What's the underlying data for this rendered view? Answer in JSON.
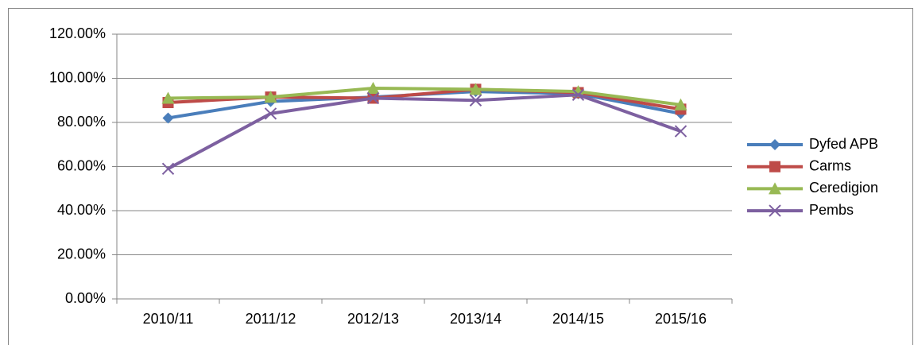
{
  "chart_data": {
    "type": "line",
    "categories": [
      "2010/11",
      "2011/12",
      "2012/13",
      "2013/14",
      "2014/15",
      "2015/16"
    ],
    "series": [
      {
        "name": "Dyfed APB",
        "color": "#4a7ebb",
        "marker": "diamond",
        "values": [
          82,
          89.5,
          91.5,
          94,
          93,
          84
        ]
      },
      {
        "name": "Carms",
        "color": "#be4b48",
        "marker": "square",
        "values": [
          89,
          91.5,
          91,
          95,
          93.5,
          86
        ]
      },
      {
        "name": "Ceredigion",
        "color": "#98b954",
        "marker": "triangle",
        "values": [
          91,
          91.5,
          95.5,
          95,
          94,
          88
        ]
      },
      {
        "name": "Pembs",
        "color": "#7d60a0",
        "marker": "x",
        "values": [
          59,
          84,
          91,
          90,
          92.5,
          76
        ]
      }
    ],
    "ylim": [
      0,
      120
    ],
    "yticks": [
      {
        "value": 0,
        "label": "0.00%"
      },
      {
        "value": 20,
        "label": "20.00%"
      },
      {
        "value": 40,
        "label": "40.00%"
      },
      {
        "value": 60,
        "label": "60.00%"
      },
      {
        "value": 80,
        "label": "80.00%"
      },
      {
        "value": 100,
        "label": "100.00%"
      },
      {
        "value": 120,
        "label": "120.00%"
      }
    ],
    "grid": true,
    "legend": "right"
  }
}
